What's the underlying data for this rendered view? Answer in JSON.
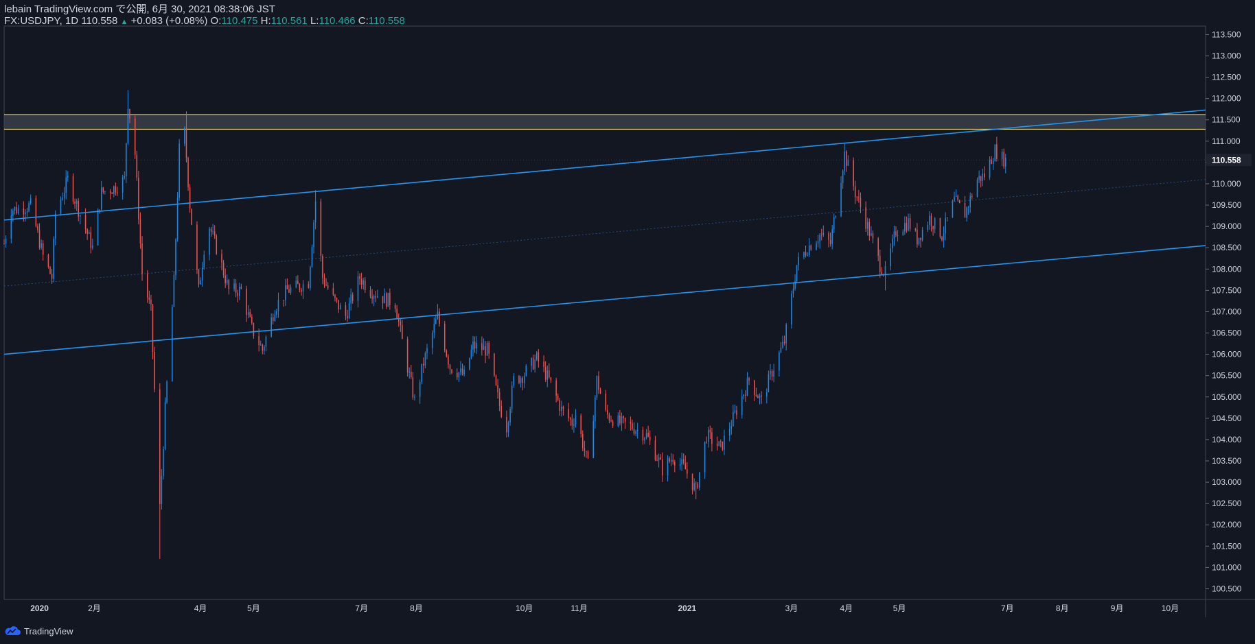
{
  "header": {
    "publish_line": "lebain TradingView.com で公開, 6月 30, 2021 08:38:06 JST",
    "symbol": "FX:USDJPY, 1D",
    "last": "110.558",
    "change_arrow": "▲",
    "change": "+0.083 (+0.08%)",
    "o_label": "O:",
    "o_value": "110.475",
    "h_label": "H:",
    "h_value": "110.561",
    "l_label": "L:",
    "l_value": "110.466",
    "c_label": "C:",
    "c_value": "110.558"
  },
  "footer": {
    "brand": "TradingView",
    "logo_icon": "tradingview-cloud-icon"
  },
  "colors": {
    "background": "#131722",
    "up": "#2962ff",
    "up_bright": "#1e88e5",
    "down": "#ef5350",
    "trendline": "#2196f3",
    "zone_line": "#e6d46a",
    "zone_fill": "#4a4f59",
    "text": "#d1d4dc",
    "grid": "#2a2e39"
  },
  "chart_data": {
    "type": "candlestick",
    "symbol": "FX:USDJPY",
    "interval": "1D",
    "last_price": 110.558,
    "ylim": [
      100.25,
      113.7
    ],
    "y_ticks": [
      "100.500",
      "101.000",
      "101.500",
      "102.000",
      "102.500",
      "103.000",
      "103.500",
      "104.000",
      "104.500",
      "105.000",
      "105.500",
      "106.000",
      "106.500",
      "107.000",
      "107.500",
      "108.000",
      "108.500",
      "109.000",
      "109.500",
      "110.000",
      "110.500",
      "111.000",
      "111.500",
      "112.000",
      "112.500",
      "113.000",
      "113.500"
    ],
    "x_ticks": [
      {
        "label": "2020",
        "date": "2020-01-01"
      },
      {
        "label": "2月",
        "date": "2020-02-01"
      },
      {
        "label": "4月",
        "date": "2020-04-01"
      },
      {
        "label": "5月",
        "date": "2020-05-01"
      },
      {
        "label": "7月",
        "date": "2020-07-01"
      },
      {
        "label": "8月",
        "date": "2020-08-01"
      },
      {
        "label": "10月",
        "date": "2020-10-01"
      },
      {
        "label": "11月",
        "date": "2020-11-01"
      },
      {
        "label": "2021",
        "date": "2021-01-01"
      },
      {
        "label": "3月",
        "date": "2021-03-01"
      },
      {
        "label": "4月",
        "date": "2021-04-01"
      },
      {
        "label": "5月",
        "date": "2021-05-01"
      },
      {
        "label": "7月",
        "date": "2021-07-01"
      },
      {
        "label": "8月",
        "date": "2021-08-01"
      },
      {
        "label": "9月",
        "date": "2021-09-01"
      },
      {
        "label": "10月",
        "date": "2021-10-01"
      }
    ],
    "x_range": [
      "2019-12-12",
      "2021-10-21"
    ],
    "price_path": [
      [
        "2019-12-12",
        108.6
      ],
      [
        "2019-12-16",
        109.4
      ],
      [
        "2019-12-20",
        109.4
      ],
      [
        "2019-12-27",
        109.5
      ],
      [
        "2020-01-03",
        108.3
      ],
      [
        "2020-01-08",
        107.8
      ],
      [
        "2020-01-10",
        109.3
      ],
      [
        "2020-01-17",
        110.1
      ],
      [
        "2020-01-23",
        109.4
      ],
      [
        "2020-01-31",
        108.5
      ],
      [
        "2020-02-05",
        109.8
      ],
      [
        "2020-02-12",
        109.9
      ],
      [
        "2020-02-18",
        110.1
      ],
      [
        "2020-02-20",
        111.9
      ],
      [
        "2020-02-24",
        110.7
      ],
      [
        "2020-02-28",
        107.9
      ],
      [
        "2020-03-04",
        107.0
      ],
      [
        "2020-03-09",
        102.4
      ],
      [
        "2020-03-12",
        104.7
      ],
      [
        "2020-03-17",
        107.7
      ],
      [
        "2020-03-20",
        110.8
      ],
      [
        "2020-03-23",
        111.2
      ],
      [
        "2020-03-26",
        109.5
      ],
      [
        "2020-03-31",
        107.5
      ],
      [
        "2020-04-03",
        108.5
      ],
      [
        "2020-04-06",
        109.0
      ],
      [
        "2020-04-10",
        108.5
      ],
      [
        "2020-04-17",
        107.5
      ],
      [
        "2020-04-24",
        107.5
      ],
      [
        "2020-04-30",
        106.6
      ],
      [
        "2020-05-06",
        106.1
      ],
      [
        "2020-05-13",
        107.1
      ],
      [
        "2020-05-20",
        107.5
      ],
      [
        "2020-05-27",
        107.6
      ],
      [
        "2020-06-01",
        107.7
      ],
      [
        "2020-06-05",
        109.6
      ],
      [
        "2020-06-09",
        107.8
      ],
      [
        "2020-06-15",
        107.3
      ],
      [
        "2020-06-22",
        106.9
      ],
      [
        "2020-06-30",
        107.8
      ],
      [
        "2020-07-06",
        107.5
      ],
      [
        "2020-07-14",
        107.3
      ],
      [
        "2020-07-20",
        107.2
      ],
      [
        "2020-07-24",
        106.3
      ],
      [
        "2020-07-31",
        104.9
      ],
      [
        "2020-08-05",
        105.8
      ],
      [
        "2020-08-13",
        106.9
      ],
      [
        "2020-08-20",
        105.7
      ],
      [
        "2020-08-28",
        105.5
      ],
      [
        "2020-09-02",
        106.2
      ],
      [
        "2020-09-10",
        106.1
      ],
      [
        "2020-09-17",
        104.8
      ],
      [
        "2020-09-21",
        104.3
      ],
      [
        "2020-09-25",
        105.4
      ],
      [
        "2020-09-30",
        105.5
      ],
      [
        "2020-10-08",
        105.9
      ],
      [
        "2020-10-15",
        105.4
      ],
      [
        "2020-10-22",
        104.7
      ],
      [
        "2020-10-28",
        104.4
      ],
      [
        "2020-10-30",
        104.6
      ],
      [
        "2020-11-06",
        103.4
      ],
      [
        "2020-11-11",
        105.4
      ],
      [
        "2020-11-16",
        104.6
      ],
      [
        "2020-11-23",
        104.4
      ],
      [
        "2020-12-01",
        104.3
      ],
      [
        "2020-12-09",
        104.1
      ],
      [
        "2020-12-15",
        103.6
      ],
      [
        "2020-12-18",
        103.3
      ],
      [
        "2020-12-24",
        103.6
      ],
      [
        "2020-12-31",
        103.3
      ],
      [
        "2021-01-06",
        102.8
      ],
      [
        "2021-01-12",
        104.1
      ],
      [
        "2021-01-20",
        103.8
      ],
      [
        "2021-01-29",
        104.7
      ],
      [
        "2021-02-05",
        105.4
      ],
      [
        "2021-02-12",
        104.9
      ],
      [
        "2021-02-18",
        105.6
      ],
      [
        "2021-02-25",
        106.3
      ],
      [
        "2021-03-04",
        108.1
      ],
      [
        "2021-03-10",
        108.5
      ],
      [
        "2021-03-17",
        108.8
      ],
      [
        "2021-03-23",
        108.6
      ],
      [
        "2021-03-31",
        110.7
      ],
      [
        "2021-04-06",
        109.8
      ],
      [
        "2021-04-13",
        109.0
      ],
      [
        "2021-04-20",
        108.1
      ],
      [
        "2021-04-23",
        107.9
      ],
      [
        "2021-04-29",
        108.9
      ],
      [
        "2021-05-06",
        109.1
      ],
      [
        "2021-05-11",
        108.7
      ],
      [
        "2021-05-18",
        109.2
      ],
      [
        "2021-05-25",
        108.8
      ],
      [
        "2021-06-01",
        109.6
      ],
      [
        "2021-06-07",
        109.3
      ],
      [
        "2021-06-14",
        110.1
      ],
      [
        "2021-06-18",
        110.2
      ],
      [
        "2021-06-24",
        110.8
      ],
      [
        "2021-06-28",
        110.6
      ],
      [
        "2021-06-30",
        110.558
      ]
    ],
    "key_bars": [
      {
        "date": "2020-02-20",
        "high": 112.2
      },
      {
        "date": "2020-03-09",
        "low": 101.2
      },
      {
        "date": "2020-03-24",
        "high": 111.7
      },
      {
        "date": "2020-06-05",
        "high": 109.85
      },
      {
        "date": "2021-01-06",
        "low": 102.6
      },
      {
        "date": "2021-03-31",
        "high": 110.95
      },
      {
        "date": "2021-04-23",
        "low": 107.5
      },
      {
        "date": "2021-06-24",
        "high": 110.9
      }
    ],
    "drawings": {
      "resistance_zone": {
        "top": 111.62,
        "bottom": 111.28
      },
      "upper_trendline": {
        "p1": [
          "2019-12-12",
          109.15
        ],
        "p2": [
          "2021-10-21",
          111.73
        ]
      },
      "lower_trendline": {
        "p1": [
          "2019-12-12",
          106.0
        ],
        "p2": [
          "2021-10-21",
          108.55
        ]
      },
      "mid_channel_line": {
        "p1": [
          "2019-12-12",
          107.6
        ],
        "p2": [
          "2021-10-21",
          110.1
        ]
      }
    }
  }
}
